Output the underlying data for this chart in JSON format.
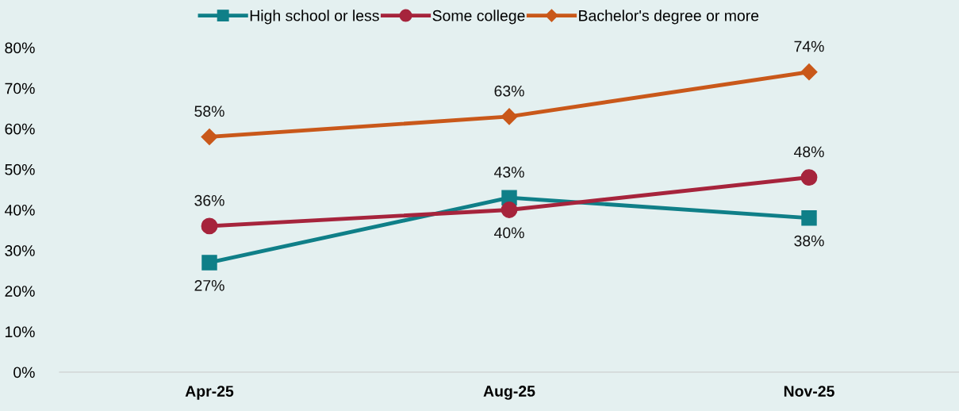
{
  "chart_data": {
    "type": "line",
    "categories": [
      "Apr-25",
      "Aug-25",
      "Nov-25"
    ],
    "series": [
      {
        "name": "High school or less",
        "color": "#0f7f88",
        "marker": "square",
        "values": [
          27,
          43,
          38
        ],
        "value_labels": [
          "27%",
          "43%",
          "38%"
        ]
      },
      {
        "name": "Some college",
        "color": "#a6243c",
        "marker": "circle",
        "values": [
          36,
          40,
          48
        ],
        "value_labels": [
          "36%",
          "40%",
          "48%"
        ]
      },
      {
        "name": "Bachelor's degree or more",
        "color": "#c9581a",
        "marker": "diamond",
        "values": [
          58,
          63,
          74
        ],
        "value_labels": [
          "58%",
          "63%",
          "74%"
        ]
      }
    ],
    "ylim": [
      0,
      80
    ],
    "yticks": [
      {
        "value": 0,
        "label": "0%"
      },
      {
        "value": 10,
        "label": "10%"
      },
      {
        "value": 20,
        "label": "20%"
      },
      {
        "value": 30,
        "label": "30%"
      },
      {
        "value": 40,
        "label": "40%"
      },
      {
        "value": 50,
        "label": "50%"
      },
      {
        "value": 60,
        "label": "60%"
      },
      {
        "value": 70,
        "label": "70%"
      },
      {
        "value": 80,
        "label": "80%"
      }
    ],
    "grid": false,
    "legend": "top",
    "line_style": "solid"
  }
}
